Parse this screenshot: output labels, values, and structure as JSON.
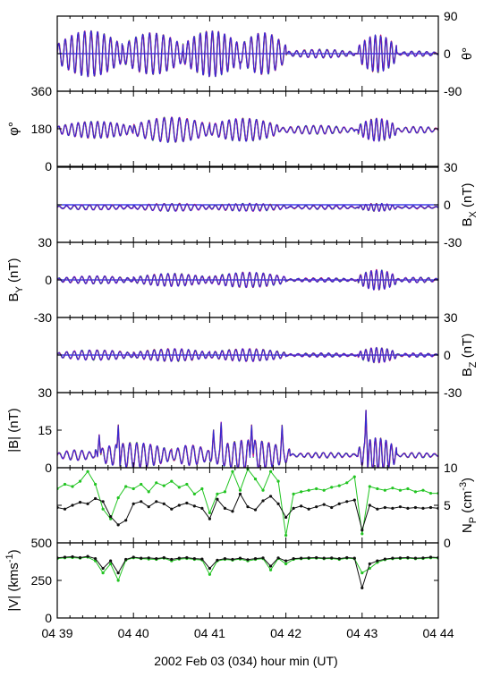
{
  "figure": {
    "xlabel": "2002 Feb 03 (034)  hour min (UT)",
    "x_tick_labels": [
      "04 39",
      "04 40",
      "04 41",
      "04 42",
      "04 43",
      "04 44"
    ]
  },
  "colors": {
    "series_blue": "#2a2ad8",
    "series_green": "#22c422",
    "series_magenta": "#d81ad8",
    "series_red": "#d82a2a",
    "series_black": "#111111",
    "zero_line": "#1a1ae6"
  },
  "chart_data": [
    {
      "type": "line",
      "id": "theta",
      "ylabel": "θ°",
      "ylabel_side": "right",
      "ylim": [
        -90,
        90
      ],
      "yticks": [
        "90",
        "0",
        "-90"
      ],
      "ytick_side": "right",
      "zero_line": true,
      "x_range_minutes": [
        39,
        44
      ],
      "baseline": 0,
      "events": [
        {
          "t": 39.0,
          "amp": 55,
          "period": 0.085,
          "dur": 0.85
        },
        {
          "t": 39.85,
          "amp": 50,
          "period": 0.09,
          "dur": 0.8
        },
        {
          "t": 40.65,
          "amp": 55,
          "period": 0.08,
          "dur": 0.75
        },
        {
          "t": 41.4,
          "amp": 50,
          "period": 0.09,
          "dur": 0.6
        },
        {
          "t": 42.0,
          "amp": 10,
          "period": 0.1,
          "dur": 0.9
        },
        {
          "t": 42.95,
          "amp": 45,
          "period": 0.07,
          "dur": 0.5
        },
        {
          "t": 43.45,
          "amp": 6,
          "period": 0.1,
          "dur": 0.55
        }
      ]
    },
    {
      "type": "line",
      "id": "phi",
      "ylabel": "φ°",
      "ylabel_side": "left",
      "ylim": [
        0,
        360
      ],
      "yticks": [
        "360",
        "180",
        "0"
      ],
      "ytick_side": "left",
      "zero_line": false,
      "x_range_minutes": [
        39,
        44
      ],
      "baseline": 175,
      "events": [
        {
          "t": 39.0,
          "amp": 40,
          "period": 0.085,
          "dur": 1.0
        },
        {
          "t": 40.0,
          "amp": 60,
          "period": 0.1,
          "dur": 1.0
        },
        {
          "t": 41.0,
          "amp": 55,
          "period": 0.09,
          "dur": 0.9
        },
        {
          "t": 41.9,
          "amp": 20,
          "period": 0.1,
          "dur": 1.0
        },
        {
          "t": 42.95,
          "amp": 55,
          "period": 0.07,
          "dur": 0.5
        },
        {
          "t": 43.45,
          "amp": 15,
          "period": 0.1,
          "dur": 0.55
        }
      ]
    },
    {
      "type": "line",
      "id": "bx",
      "ylabel": "BX (nT)",
      "ylabel_main": "B",
      "ylabel_sub": "X",
      "ylabel_unit": "(nT)",
      "ylabel_side": "right",
      "ylim": [
        -30,
        30
      ],
      "yticks": [
        "30",
        "0",
        "-30"
      ],
      "ytick_side": "right",
      "zero_line": true,
      "x_range_minutes": [
        39,
        44
      ],
      "baseline": -2,
      "events": [
        {
          "t": 39.0,
          "amp": 2,
          "period": 0.1,
          "dur": 1.0
        },
        {
          "t": 40.0,
          "amp": 3,
          "period": 0.1,
          "dur": 1.0
        },
        {
          "t": 41.0,
          "amp": 3,
          "period": 0.09,
          "dur": 1.0
        },
        {
          "t": 42.0,
          "amp": 1.5,
          "period": 0.1,
          "dur": 0.95
        },
        {
          "t": 42.95,
          "amp": 3,
          "period": 0.07,
          "dur": 0.5
        },
        {
          "t": 43.45,
          "amp": 1,
          "period": 0.1,
          "dur": 0.55
        }
      ]
    },
    {
      "type": "line",
      "id": "by",
      "ylabel": "BY (nT)",
      "ylabel_main": "B",
      "ylabel_sub": "Y",
      "ylabel_unit": "(nT)",
      "ylabel_side": "left",
      "ylim": [
        -30,
        30
      ],
      "yticks": [
        "30",
        "0",
        "-30"
      ],
      "ytick_side": "left",
      "zero_line": true,
      "x_range_minutes": [
        39,
        44
      ],
      "baseline": 0,
      "events": [
        {
          "t": 39.0,
          "amp": 3,
          "period": 0.1,
          "dur": 1.0
        },
        {
          "t": 40.0,
          "amp": 5,
          "period": 0.09,
          "dur": 1.0
        },
        {
          "t": 41.0,
          "amp": 6,
          "period": 0.09,
          "dur": 1.0
        },
        {
          "t": 42.0,
          "amp": 1.5,
          "period": 0.1,
          "dur": 0.95
        },
        {
          "t": 42.95,
          "amp": 8,
          "period": 0.07,
          "dur": 0.5
        },
        {
          "t": 43.45,
          "amp": 2,
          "period": 0.1,
          "dur": 0.55
        }
      ]
    },
    {
      "type": "line",
      "id": "bz",
      "ylabel": "BZ (nT)",
      "ylabel_main": "B",
      "ylabel_sub": "Z",
      "ylabel_unit": "(nT)",
      "ylabel_side": "right",
      "ylim": [
        -30,
        30
      ],
      "yticks": [
        "30",
        "0",
        "-30"
      ],
      "ytick_side": "right",
      "zero_line": true,
      "x_range_minutes": [
        39,
        44
      ],
      "baseline": 0,
      "events": [
        {
          "t": 39.0,
          "amp": 4,
          "period": 0.1,
          "dur": 1.0
        },
        {
          "t": 40.0,
          "amp": 5,
          "period": 0.09,
          "dur": 1.0
        },
        {
          "t": 41.0,
          "amp": 5,
          "period": 0.09,
          "dur": 1.0
        },
        {
          "t": 42.0,
          "amp": 1.5,
          "period": 0.1,
          "dur": 0.95
        },
        {
          "t": 42.95,
          "amp": 6,
          "period": 0.07,
          "dur": 0.5
        },
        {
          "t": 43.45,
          "amp": 1.5,
          "period": 0.1,
          "dur": 0.55
        }
      ]
    },
    {
      "type": "line",
      "id": "bmag",
      "ylabel": "|B| (nT)",
      "ylabel_side": "left",
      "ylim": [
        0,
        30
      ],
      "yticks": [
        "30",
        "15",
        "0"
      ],
      "ytick_side": "left",
      "zero_line": false,
      "x_range_minutes": [
        39,
        44
      ],
      "baseline": 5,
      "events": [
        {
          "t": 39.0,
          "amp": 2,
          "period": 0.1,
          "dur": 0.5
        },
        {
          "t": 39.5,
          "amp": 5,
          "period": 0.09,
          "dur": 1.0
        },
        {
          "t": 40.5,
          "amp": 4,
          "period": 0.1,
          "dur": 0.5
        },
        {
          "t": 41.0,
          "amp": 6,
          "period": 0.09,
          "dur": 1.05
        },
        {
          "t": 42.05,
          "amp": 1,
          "period": 0.1,
          "dur": 0.9
        },
        {
          "t": 42.95,
          "amp": 7,
          "period": 0.07,
          "dur": 0.5
        },
        {
          "t": 43.45,
          "amp": 1,
          "period": 0.1,
          "dur": 0.55
        }
      ],
      "spikes": [
        {
          "t": 39.55,
          "value": 13
        },
        {
          "t": 39.8,
          "value": 17
        },
        {
          "t": 41.05,
          "value": 15
        },
        {
          "t": 41.15,
          "value": 18
        },
        {
          "t": 41.55,
          "value": 17
        },
        {
          "t": 41.95,
          "value": 17
        },
        {
          "t": 43.05,
          "value": 23
        }
      ]
    },
    {
      "type": "line",
      "id": "np",
      "ylabel": "NP (cm-3)",
      "ylabel_main": "N",
      "ylabel_sub": "P",
      "ylabel_unit_pre": "(cm",
      "ylabel_unit_sup": "-3",
      "ylabel_unit_post": ")",
      "ylabel_side": "right",
      "ylim": [
        0,
        10
      ],
      "yticks": [
        "10",
        "5",
        "0"
      ],
      "ytick_side": "right",
      "zero_line": false,
      "x_range_minutes": [
        39,
        44
      ],
      "series": [
        {
          "name": "",
          "color": "#111111",
          "markers": true,
          "x": [
            39.0,
            39.1,
            39.2,
            39.3,
            39.4,
            39.5,
            39.6,
            39.7,
            39.8,
            39.9,
            40.0,
            40.1,
            40.2,
            40.3,
            40.4,
            40.5,
            40.6,
            40.7,
            40.8,
            40.9,
            41.0,
            41.1,
            41.2,
            41.3,
            41.4,
            41.5,
            41.6,
            41.7,
            41.8,
            41.9,
            42.0,
            42.1,
            42.2,
            42.3,
            42.4,
            42.5,
            42.6,
            42.7,
            42.8,
            42.9,
            43.0,
            43.1,
            43.2,
            43.3,
            43.4,
            43.5,
            43.6,
            43.7,
            43.8,
            43.9,
            44.0
          ],
          "values": [
            4.7,
            4.5,
            5.0,
            5.4,
            5.2,
            5.9,
            5.5,
            3.5,
            2.4,
            3.0,
            5.2,
            5.5,
            4.8,
            5.5,
            5.2,
            4.5,
            5.0,
            5.3,
            4.9,
            4.6,
            3.2,
            5.8,
            4.6,
            4.2,
            6.5,
            4.8,
            4.4,
            5.6,
            6.2,
            5.2,
            3.4,
            4.6,
            4.9,
            4.5,
            4.8,
            5.1,
            4.7,
            5.2,
            5.5,
            5.7,
            1.7,
            5.0,
            4.5,
            4.7,
            4.6,
            4.8,
            4.6,
            4.7,
            4.6,
            4.7,
            4.6
          ]
        },
        {
          "name": "",
          "color": "#22c422",
          "markers": true,
          "x": [
            39.0,
            39.1,
            39.2,
            39.3,
            39.4,
            39.5,
            39.6,
            39.7,
            39.8,
            39.9,
            40.0,
            40.1,
            40.2,
            40.3,
            40.4,
            40.5,
            40.6,
            40.7,
            40.8,
            40.9,
            41.0,
            41.1,
            41.2,
            41.3,
            41.4,
            41.5,
            41.6,
            41.7,
            41.8,
            41.9,
            42.0,
            42.1,
            42.2,
            42.3,
            42.4,
            42.5,
            42.6,
            42.7,
            42.8,
            42.9,
            43.0,
            43.1,
            43.2,
            43.3,
            43.4,
            43.5,
            43.6,
            43.7,
            43.8,
            43.9,
            44.0
          ],
          "values": [
            7.2,
            7.8,
            7.5,
            8.2,
            9.5,
            7.8,
            4.5,
            3.2,
            6.0,
            7.5,
            7.2,
            7.8,
            6.8,
            8.0,
            7.6,
            8.2,
            7.4,
            7.8,
            6.5,
            7.2,
            4.0,
            6.5,
            6.8,
            9.5,
            7.0,
            9.8,
            8.5,
            7.0,
            9.5,
            8.2,
            1.0,
            6.5,
            6.8,
            7.0,
            7.2,
            7.0,
            7.4,
            7.6,
            8.0,
            8.8,
            1.2,
            7.5,
            7.2,
            7.0,
            7.3,
            7.0,
            7.2,
            6.8,
            7.0,
            6.6,
            6.6
          ]
        }
      ]
    },
    {
      "type": "line",
      "id": "vmag",
      "ylabel": "|V| (kms-1)",
      "ylabel_main": "|V| (kms",
      "ylabel_unit_sup": "-1",
      "ylabel_unit_post": ")",
      "ylabel_side": "left",
      "ylim": [
        0,
        500
      ],
      "yticks": [
        "500",
        "250",
        "0"
      ],
      "ytick_side": "left",
      "zero_line": false,
      "x_range_minutes": [
        39,
        44
      ],
      "series": [
        {
          "name": "",
          "color": "#111111",
          "markers": true,
          "x": [
            39.0,
            39.1,
            39.2,
            39.3,
            39.4,
            39.5,
            39.6,
            39.7,
            39.8,
            39.9,
            40.0,
            40.1,
            40.2,
            40.3,
            40.4,
            40.5,
            40.6,
            40.7,
            40.8,
            40.9,
            41.0,
            41.1,
            41.2,
            41.3,
            41.4,
            41.5,
            41.6,
            41.7,
            41.8,
            41.9,
            42.0,
            42.1,
            42.2,
            42.3,
            42.4,
            42.5,
            42.6,
            42.7,
            42.8,
            42.9,
            43.0,
            43.1,
            43.2,
            43.3,
            43.4,
            43.5,
            43.6,
            43.7,
            43.8,
            43.9,
            44.0
          ],
          "values": [
            400,
            405,
            408,
            402,
            410,
            395,
            330,
            380,
            300,
            390,
            405,
            398,
            400,
            395,
            402,
            390,
            398,
            402,
            395,
            392,
            330,
            385,
            395,
            390,
            398,
            388,
            395,
            400,
            345,
            400,
            380,
            395,
            398,
            400,
            402,
            398,
            400,
            395,
            402,
            398,
            200,
            360,
            380,
            392,
            398,
            400,
            402,
            398,
            400,
            405,
            402
          ]
        },
        {
          "name": "",
          "color": "#22c422",
          "markers": true,
          "x": [
            39.0,
            39.1,
            39.2,
            39.3,
            39.4,
            39.5,
            39.6,
            39.7,
            39.8,
            39.9,
            40.0,
            40.1,
            40.2,
            40.3,
            40.4,
            40.5,
            40.6,
            40.7,
            40.8,
            40.9,
            41.0,
            41.1,
            41.2,
            41.3,
            41.4,
            41.5,
            41.6,
            41.7,
            41.8,
            41.9,
            42.0,
            42.1,
            42.2,
            42.3,
            42.4,
            42.5,
            42.6,
            42.7,
            42.8,
            42.9,
            43.0,
            43.1,
            43.2,
            43.3,
            43.4,
            43.5,
            43.6,
            43.7,
            43.8,
            43.9,
            44.0
          ],
          "values": [
            395,
            400,
            402,
            398,
            405,
            380,
            300,
            360,
            250,
            385,
            400,
            395,
            392,
            390,
            398,
            380,
            392,
            396,
            390,
            386,
            290,
            380,
            390,
            385,
            392,
            380,
            390,
            395,
            320,
            396,
            360,
            390,
            394,
            396,
            398,
            394,
            396,
            390,
            398,
            394,
            300,
            330,
            370,
            388,
            394,
            396,
            398,
            394,
            396,
            400,
            398
          ]
        }
      ]
    }
  ]
}
